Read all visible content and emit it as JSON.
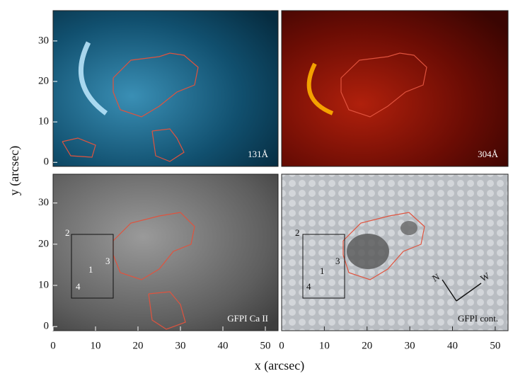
{
  "figure": {
    "xlabel": "x  (arcsec)",
    "ylabel": "y  (arcsec)"
  },
  "chart_data": [
    {
      "type": "image",
      "label": "131Å",
      "xlim": [
        0,
        53
      ],
      "ylim": [
        -1,
        37.5
      ],
      "yticks": [
        0,
        10,
        20,
        30
      ]
    },
    {
      "type": "image",
      "label": "304Å",
      "xlim": [
        0,
        53
      ],
      "ylim": [
        -1,
        37.5
      ]
    },
    {
      "type": "image",
      "label": "GFPI Ca II",
      "xlim": [
        0,
        53
      ],
      "ylim": [
        -1,
        37
      ],
      "xticks": [
        0,
        10,
        20,
        30,
        40,
        50
      ],
      "yticks": [
        0,
        10,
        20,
        30
      ],
      "annotations": [
        "1",
        "2",
        "3",
        "4"
      ]
    },
    {
      "type": "image",
      "label": "GFPI cont.",
      "xlim": [
        0,
        53
      ],
      "ylim": [
        -1,
        37
      ],
      "xticks": [
        0,
        10,
        20,
        30,
        40,
        50
      ],
      "annotations": [
        "1",
        "2",
        "3",
        "4",
        "N",
        "W"
      ]
    }
  ]
}
